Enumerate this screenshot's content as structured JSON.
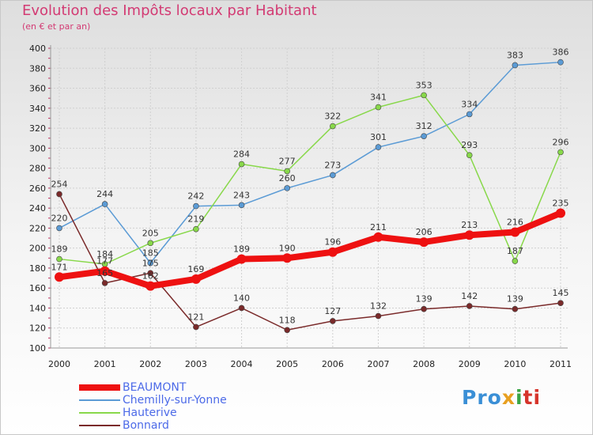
{
  "chart_data": {
    "type": "line",
    "title": "Evolution des Impôts locaux par Habitant",
    "subtitle": "(en € et par an)",
    "categories": [
      "2000",
      "2001",
      "2002",
      "2003",
      "2004",
      "2005",
      "2006",
      "2007",
      "2008",
      "2009",
      "2010",
      "2011"
    ],
    "ylim": [
      100,
      400
    ],
    "yticks": [
      100,
      120,
      140,
      160,
      180,
      200,
      220,
      240,
      260,
      280,
      300,
      320,
      340,
      360,
      380,
      400
    ],
    "grid": true,
    "legend_position": "bottom-left",
    "series": [
      {
        "name": "BEAUMONT",
        "color": "#ee1111",
        "width": 8,
        "point": 6,
        "values": [
          171,
          177,
          162,
          169,
          189,
          190,
          196,
          211,
          206,
          213,
          216,
          235
        ]
      },
      {
        "name": "Chemilly-sur-Yonne",
        "color": "#5b9bd5",
        "width": 1.5,
        "point": 3.5,
        "values": [
          220,
          244,
          185,
          242,
          243,
          260,
          273,
          301,
          312,
          334,
          383,
          386
        ]
      },
      {
        "name": "Hauterive",
        "color": "#88d84a",
        "width": 1.5,
        "point": 3.5,
        "values": [
          189,
          184,
          205,
          219,
          284,
          277,
          322,
          341,
          353,
          293,
          187,
          296
        ]
      },
      {
        "name": "Bonnard",
        "color": "#7a2a2a",
        "width": 1.5,
        "point": 3.5,
        "values": [
          254,
          165,
          175,
          121,
          140,
          118,
          127,
          132,
          139,
          142,
          139,
          145
        ]
      }
    ]
  },
  "brand": {
    "logo_text": "Proxiti"
  }
}
